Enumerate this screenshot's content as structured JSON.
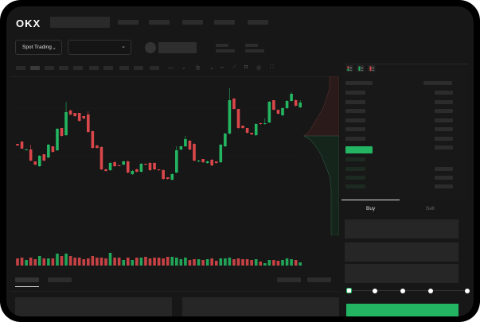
{
  "header": {
    "logo": "OKX"
  },
  "toolbar": {
    "market_dropdown": "Spot Trading",
    "icons": [
      "indicator-icon",
      "chevron-down-icon",
      "draw-icon",
      "chevron-down-icon",
      "line-icon",
      "ruler-icon",
      "camera-icon",
      "settings-icon",
      "fullscreen-icon"
    ]
  },
  "orderbook": {
    "view_icons": [
      "orderbook-both-icon",
      "orderbook-bids-icon",
      "orderbook-asks-icon"
    ]
  },
  "trade": {
    "tabs": [
      {
        "label": "Buy",
        "active": true
      },
      {
        "label": "Sell",
        "active": false
      }
    ],
    "slider_percent": 0
  },
  "colors": {
    "up": "#23b561",
    "down": "#d9474a",
    "background": "#171717",
    "accent": "#23b561"
  },
  "chart_data": {
    "type": "candlestick",
    "ohlc": [
      [
        55,
        53,
        55,
        53
      ],
      [
        58,
        49,
        58,
        49
      ],
      [
        48,
        48,
        49,
        47
      ],
      [
        48,
        34,
        54,
        33
      ],
      [
        33,
        29,
        33,
        28
      ],
      [
        27,
        40,
        41,
        26
      ],
      [
        42,
        34,
        42,
        33
      ],
      [
        38,
        54,
        55,
        37
      ],
      [
        52,
        45,
        52,
        44
      ],
      [
        47,
        74,
        75,
        46
      ],
      [
        75,
        65,
        75,
        64
      ],
      [
        66,
        95,
        108,
        65
      ],
      [
        97,
        92,
        98,
        91
      ],
      [
        94,
        90,
        94,
        89
      ],
      [
        94,
        84,
        94,
        83
      ],
      [
        90,
        87,
        90,
        86
      ],
      [
        92,
        70,
        96,
        69
      ],
      [
        71,
        50,
        72,
        49
      ],
      [
        53,
        50,
        54,
        49
      ],
      [
        51,
        23,
        52,
        22
      ],
      [
        23,
        21,
        24,
        20
      ],
      [
        22,
        31,
        32,
        21
      ],
      [
        32,
        27,
        33,
        26
      ],
      [
        28,
        27,
        29,
        27
      ],
      [
        29,
        33,
        34,
        28
      ],
      [
        33,
        19,
        34,
        18
      ],
      [
        17,
        21,
        22,
        16
      ],
      [
        23,
        20,
        24,
        19
      ],
      [
        20,
        30,
        31,
        19
      ],
      [
        30,
        29,
        30,
        28
      ],
      [
        31,
        22,
        32,
        21
      ],
      [
        31,
        23,
        32,
        22
      ],
      [
        23,
        22,
        23,
        21
      ],
      [
        22,
        11,
        23,
        10
      ],
      [
        13,
        11,
        13,
        10
      ],
      [
        10,
        17,
        18,
        9
      ],
      [
        19,
        47,
        52,
        18
      ],
      [
        48,
        52,
        53,
        47
      ],
      [
        52,
        61,
        65,
        51
      ],
      [
        59,
        48,
        60,
        47
      ],
      [
        55,
        34,
        56,
        33
      ],
      [
        33,
        34,
        35,
        32
      ],
      [
        36,
        32,
        36,
        31
      ],
      [
        31,
        33,
        34,
        30
      ],
      [
        35,
        28,
        36,
        27
      ],
      [
        33,
        31,
        33,
        30
      ],
      [
        32,
        54,
        55,
        31
      ],
      [
        52,
        68,
        69,
        51
      ],
      [
        68,
        110,
        125,
        67
      ],
      [
        112,
        99,
        113,
        98
      ],
      [
        99,
        75,
        99,
        74
      ],
      [
        78,
        75,
        78,
        74
      ],
      [
        75,
        69,
        75,
        68
      ],
      [
        69,
        67,
        69,
        66
      ],
      [
        66,
        80,
        81,
        65
      ],
      [
        81,
        80,
        82,
        79
      ],
      [
        80,
        81,
        87,
        79
      ],
      [
        82,
        108,
        109,
        81
      ],
      [
        110,
        98,
        110,
        97
      ],
      [
        98,
        93,
        98,
        92
      ],
      [
        91,
        100,
        101,
        90
      ],
      [
        100,
        109,
        110,
        99
      ],
      [
        109,
        118,
        120,
        108
      ],
      [
        110,
        103,
        111,
        102
      ],
      [
        101,
        107,
        110,
        100
      ]
    ],
    "volume": [
      9,
      10,
      7,
      10,
      8,
      12,
      9,
      9,
      9,
      15,
      12,
      15,
      12,
      10,
      10,
      8,
      9,
      12,
      10,
      10,
      9,
      16,
      10,
      10,
      7,
      10,
      7,
      10,
      10,
      11,
      9,
      10,
      10,
      9,
      11,
      11,
      10,
      8,
      10,
      7,
      8,
      8,
      7,
      8,
      9,
      6,
      9,
      9,
      10,
      8,
      9,
      8,
      8,
      7,
      8,
      5,
      3,
      7,
      7,
      6,
      7,
      9,
      8,
      7,
      4
    ]
  }
}
